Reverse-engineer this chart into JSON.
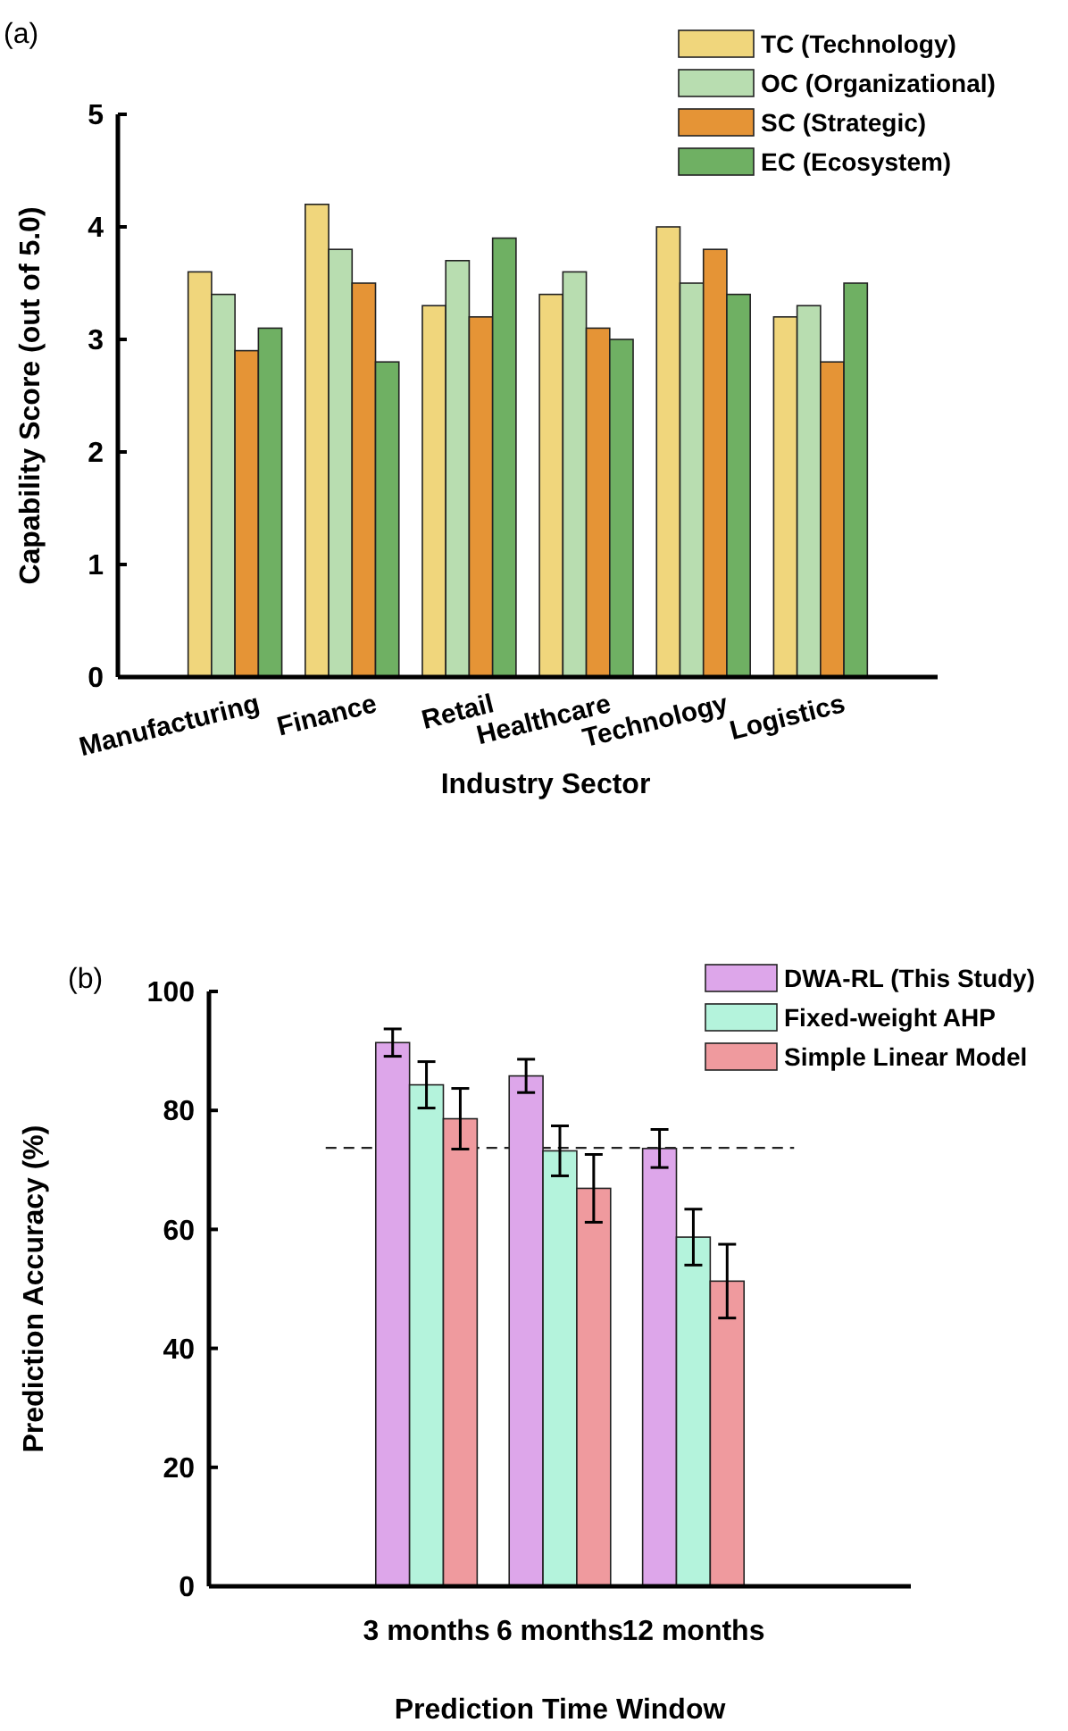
{
  "chart_data": [
    {
      "type": "bar",
      "title": "(a)",
      "xlabel": "Industry Sector",
      "ylabel": "Capability Score (out of 5.0)",
      "categories": [
        "Manufacturing",
        "Finance",
        "Retail",
        "Healthcare",
        "Technology",
        "Logistics"
      ],
      "ylim": [
        0,
        5
      ],
      "yticks": [
        0,
        1,
        2,
        3,
        4,
        5
      ],
      "legend": "top right",
      "series": [
        {
          "name": "TC (Technology)",
          "color": "#f0d67c",
          "values": [
            3.6,
            4.2,
            3.3,
            3.4,
            4.0,
            3.2
          ]
        },
        {
          "name": "OC (Organizational)",
          "color": "#b8ddb0",
          "values": [
            3.4,
            3.8,
            3.7,
            3.6,
            3.5,
            3.3
          ]
        },
        {
          "name": "SC (Strategic)",
          "color": "#e59436",
          "values": [
            2.9,
            3.5,
            3.2,
            3.1,
            3.8,
            2.8
          ]
        },
        {
          "name": "EC (Ecosystem)",
          "color": "#6fb063",
          "values": [
            3.1,
            2.8,
            3.9,
            3.0,
            3.4,
            3.5
          ]
        }
      ]
    },
    {
      "type": "bar",
      "title": "(b)",
      "xlabel": "Prediction Time Window",
      "ylabel": "Prediction Accuracy (%)",
      "categories": [
        "3 months",
        "6 months",
        "12 months"
      ],
      "ylim": [
        0,
        100
      ],
      "yticks": [
        0,
        20,
        40,
        60,
        80,
        100
      ],
      "legend": "top right",
      "ref_lines": [
        {
          "axis": "y",
          "value": 73.7,
          "line_style": "dashed"
        }
      ],
      "series": [
        {
          "name": "DWA-RL (This Study)",
          "color": "#dda6ea",
          "values": [
            91.4,
            85.8,
            73.6
          ],
          "errors": [
            2.3,
            2.8,
            3.2
          ]
        },
        {
          "name": "Fixed-weight AHP",
          "color": "#b4f3dc",
          "values": [
            84.3,
            73.2,
            58.7
          ],
          "errors": [
            3.9,
            4.2,
            4.7
          ]
        },
        {
          "name": "Simple Linear Model",
          "color": "#ef9a9e",
          "values": [
            78.6,
            66.9,
            51.3
          ],
          "errors": [
            5.1,
            5.7,
            6.2
          ]
        }
      ]
    }
  ]
}
